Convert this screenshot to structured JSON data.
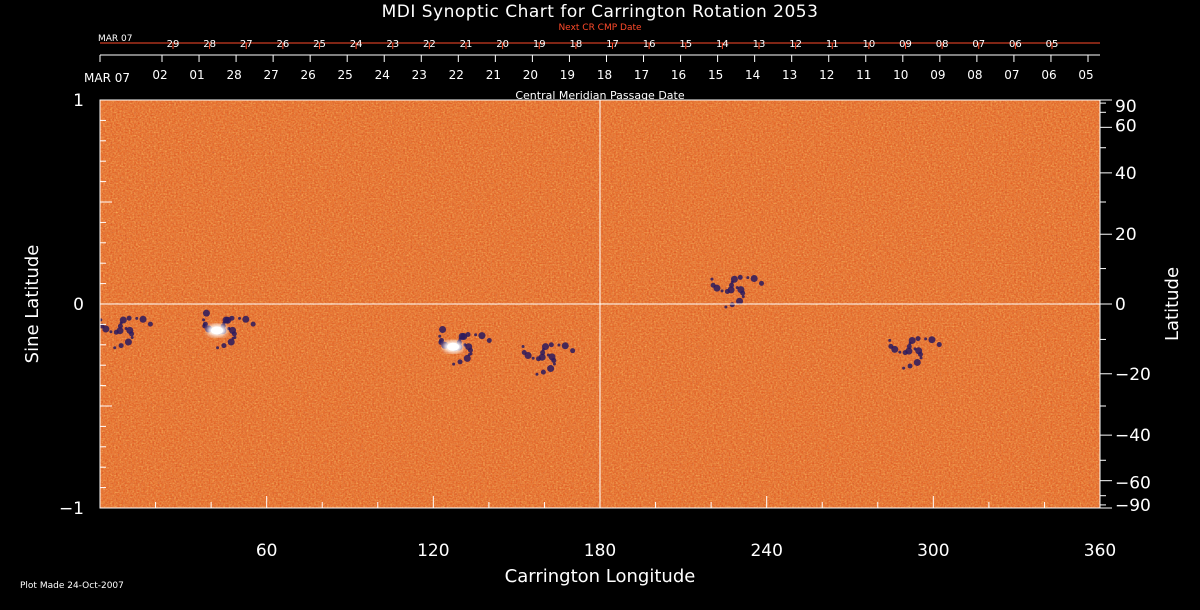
{
  "header": {
    "title": "MDI Synoptic Chart for Carrington Rotation 2053",
    "next_cr_label": "Next CR CMP Date",
    "cmp_label": "Central Meridian Passage Date",
    "plot_made": "Plot Made 24-Oct-2007"
  },
  "chart_data": {
    "type": "heatmap",
    "title": "MDI Synoptic Chart for Carrington Rotation 2053",
    "xlabel": "Carrington Longitude",
    "ylabel_left": "Sine Latitude",
    "ylabel_right": "Latitude",
    "xlim": [
      0,
      360
    ],
    "ylim": [
      -1,
      1
    ],
    "x_ticks": [
      60,
      120,
      180,
      240,
      300,
      360
    ],
    "y_ticks_left": [
      "1",
      "0",
      "−1"
    ],
    "y_tick_values_left": [
      1,
      0,
      -1
    ],
    "y_ticks_right": [
      "90",
      "60",
      "40",
      "20",
      "0",
      "−20",
      "−40",
      "−60",
      "−90"
    ],
    "y_tick_values_right": [
      90,
      60,
      40,
      20,
      0,
      -20,
      -40,
      -60,
      -90
    ],
    "cmp_dates_top": [
      "MAR 07",
      "02",
      "01",
      "28",
      "27",
      "26",
      "25",
      "24",
      "23",
      "22",
      "21",
      "20",
      "19",
      "18",
      "17",
      "16",
      "15",
      "14",
      "13",
      "12",
      "11",
      "10",
      "09",
      "08",
      "07",
      "06",
      "05"
    ],
    "next_cr_dates": [
      "MAR 07",
      "29",
      "28",
      "27",
      "26",
      "25",
      "24",
      "23",
      "22",
      "21",
      "20",
      "19",
      "18",
      "17",
      "16",
      "15",
      "14",
      "13",
      "12",
      "11",
      "10",
      "09",
      "08",
      "07",
      "06",
      "05"
    ],
    "grid_lines": {
      "vertical_at_longitude": 180,
      "horizontal_at_sine_latitude": 0
    },
    "colormap": [
      "#2a1a5e",
      "#b02810",
      "#e0541a",
      "#f07a28",
      "#ffd84a",
      "#ffffff"
    ],
    "features": [
      {
        "name": "bipolar region",
        "longitude": 45,
        "sine_latitude": -0.12,
        "polarity": "mixed"
      },
      {
        "name": "bipolar region",
        "longitude": 130,
        "sine_latitude": -0.2,
        "polarity": "mixed"
      },
      {
        "name": "negative plage",
        "longitude": 160,
        "sine_latitude": -0.25,
        "polarity": "negative"
      },
      {
        "name": "negative plage",
        "longitude": 228,
        "sine_latitude": 0.08,
        "polarity": "negative"
      },
      {
        "name": "negative plage",
        "longitude": 292,
        "sine_latitude": -0.22,
        "polarity": "negative"
      },
      {
        "name": "negative plage",
        "longitude": 8,
        "sine_latitude": -0.12,
        "polarity": "negative"
      }
    ]
  },
  "colors": {
    "background": "#000000",
    "axis": "#ffffff",
    "top_red_axis": "#ff4a2a",
    "field_base": "#e0541a"
  }
}
